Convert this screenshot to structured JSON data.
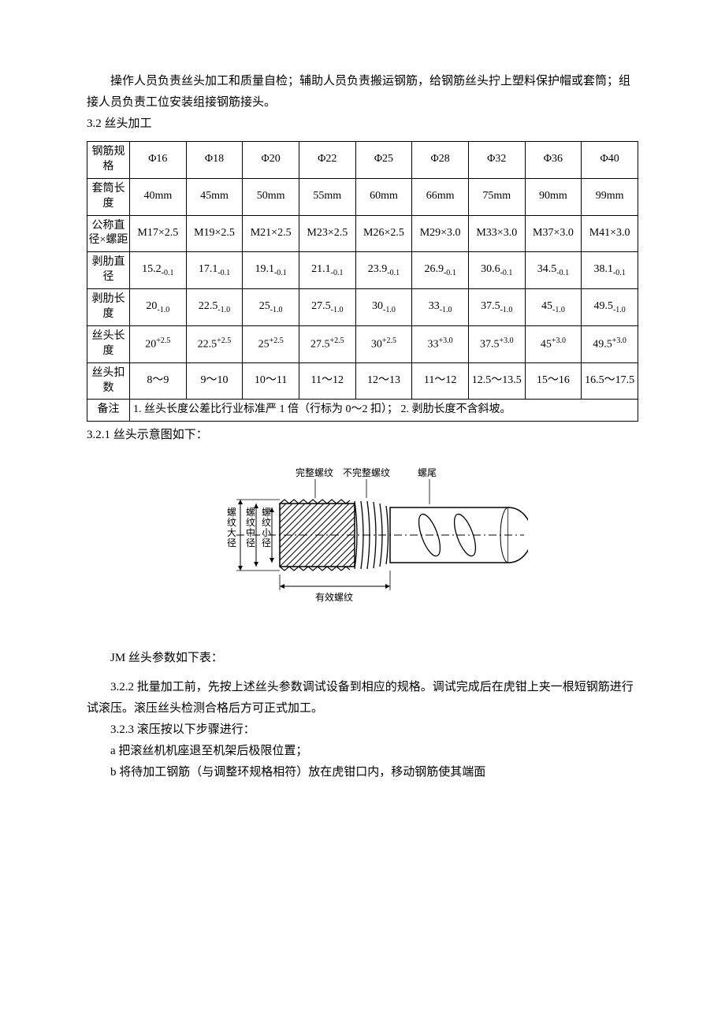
{
  "intro": {
    "p1": "操作人员负责丝头加工和质量自检；辅助人员负责搬运钢筋，给钢筋丝头拧上塑料保护帽或套筒；组接人员负责工位安装组接钢筋接头。",
    "h32": "3.2  丝头加工"
  },
  "table": {
    "columns": [
      "钢筋规格",
      "Φ16",
      "Φ18",
      "Φ20",
      "Φ22",
      "Φ25",
      "Φ28",
      "Φ32",
      "Φ36",
      "Φ40"
    ],
    "rows": {
      "sleeve": {
        "label": "套筒长度",
        "cells": [
          "40mm",
          "45mm",
          "50mm",
          "55mm",
          "60mm",
          "66mm",
          "75mm",
          "90mm",
          "99mm"
        ]
      },
      "nominal": {
        "label": "公称直径×螺距",
        "cells": [
          "M17×2.5",
          "M19×2.5",
          "M21×2.5",
          "M23×2.5",
          "M26×2.5",
          "M29×3.0",
          "M33×3.0",
          "M37×3.0",
          "M41×3.0"
        ]
      },
      "ribdia": {
        "label": "剥肋直径",
        "base": [
          "15.2",
          "17.1",
          "19.1",
          "21.1",
          "23.9",
          "26.9",
          "30.6",
          "34.5",
          "38.1"
        ],
        "sub": "-0.1"
      },
      "riblen": {
        "label": "剥肋长度",
        "base": [
          "20",
          "22.5",
          "25",
          "27.5",
          "30",
          "33",
          "37.5",
          "45",
          "49.5"
        ],
        "sub": "-1.0"
      },
      "threadlen": {
        "label": "丝头长度",
        "base": [
          "20",
          "22.5",
          "25",
          "27.5",
          "30",
          "33",
          "37.5",
          "45",
          "49.5"
        ],
        "sup": [
          "+2.5",
          "+2.5",
          "+2.5",
          "+2.5",
          "+2.5",
          "+3.0",
          "+3.0",
          "+3.0",
          "+3.0"
        ]
      },
      "threadcnt": {
        "label": "丝头扣数",
        "cells": [
          "8～9",
          "9～10",
          "10～11",
          "11～12",
          "12～13",
          "11～12",
          "12.5～13.5",
          "15～16",
          "16.5～17.5"
        ]
      }
    },
    "note_label": "备注",
    "note": "1. 丝头长度公差比行业标准严 1 倍（行标为 0～2 扣）； 2. 剥肋长度不含斜坡。"
  },
  "section321": "3.2.1  丝头示意图如下：",
  "diagram": {
    "lbl_full": "完整螺纹",
    "lbl_partial": "不完整螺纹",
    "lbl_tail": "螺尾",
    "lbl_major": "螺纹大径",
    "lbl_pitch": "螺纹中径",
    "lbl_minor": "螺纹小径",
    "lbl_effective": "有效螺纹"
  },
  "after": {
    "jm": "JM 丝头参数如下表：",
    "p322": "3.2.2  批量加工前，先按上述丝头参数调试设备到相应的规格。调试完成后在虎钳上夹一根短钢筋进行试滚压。滚压丝头检测合格后方可正式加工。",
    "p323": "3.2.3  滚压按以下步骤进行：",
    "pa": "a  把滚丝机机座退至机架后极限位置；",
    "pb": "b  将待加工钢筋（与调整环规格相符）放在虎钳口内，移动钢筋使其端面"
  },
  "colors": {
    "text": "#000000",
    "bg": "#ffffff",
    "border": "#000000"
  }
}
